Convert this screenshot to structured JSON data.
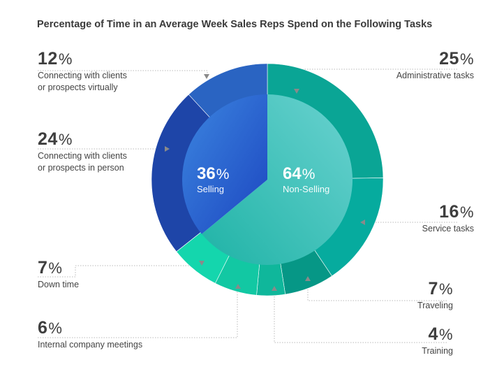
{
  "chart_data": {
    "type": "pie",
    "title": "Percentage of Time in an Average Week Sales Reps Spend on the Following Tasks",
    "inner": [
      {
        "name": "Selling",
        "value": 36,
        "pct_label": "36",
        "color": "#1f56c8"
      },
      {
        "name": "Non-Selling",
        "value": 64,
        "pct_label": "64",
        "color": "#35bcb4"
      }
    ],
    "outer": [
      {
        "name": "Administrative tasks",
        "value": 25,
        "pct_label": "25",
        "color": "#0aa595"
      },
      {
        "name": "Service tasks",
        "value": 16,
        "pct_label": "16",
        "color": "#06ab9e"
      },
      {
        "name": "Traveling",
        "value": 7,
        "pct_label": "7",
        "color": "#069786"
      },
      {
        "name": "Training",
        "value": 4,
        "pct_label": "4",
        "color": "#0fb79b"
      },
      {
        "name": "Internal company meetings",
        "value": 6,
        "pct_label": "6",
        "color": "#12c8a3"
      },
      {
        "name": "Down time",
        "value": 7,
        "pct_label": "7",
        "color": "#14d6ad"
      },
      {
        "name": "Connecting with clients or prospects in person",
        "value": 24,
        "pct_label": "24",
        "color": "#1e45a8",
        "lines": [
          "Connecting with clients",
          "or prospects in person"
        ]
      },
      {
        "name": "Connecting with clients or prospects virtually",
        "value": 12,
        "pct_label": "12",
        "color": "#2a64c2",
        "lines": [
          "Connecting with clients",
          "or prospects virtually"
        ]
      }
    ],
    "percent_symbol": "%"
  }
}
